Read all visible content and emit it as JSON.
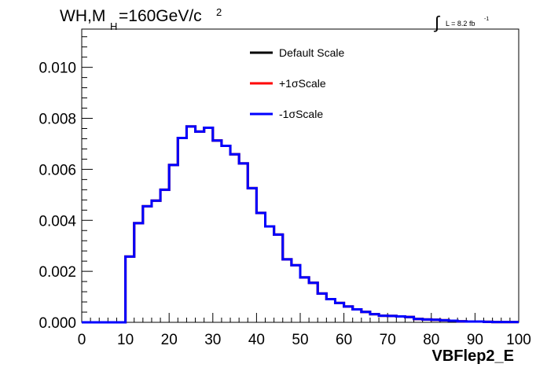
{
  "chart_data": {
    "type": "line",
    "title": {
      "main": "WH,M",
      "sub": "H",
      "value": "=160GeV/c",
      "sup": "2"
    },
    "luminosity": {
      "label": "L = 8.2 fb",
      "sup": "-1",
      "integral_glyph": "∫"
    },
    "xlabel": "VBFlep2_E",
    "ylabel": "",
    "xlim": [
      0,
      100
    ],
    "ylim": [
      0,
      0.0115
    ],
    "x_ticks": [
      "0",
      "10",
      "20",
      "30",
      "40",
      "50",
      "60",
      "70",
      "80",
      "90",
      "100"
    ],
    "y_ticks": [
      "0.000",
      "0.002",
      "0.004",
      "0.006",
      "0.008",
      "0.010"
    ],
    "bin_edges": [
      0,
      2,
      4,
      6,
      8,
      10,
      12,
      14,
      16,
      18,
      20,
      22,
      24,
      26,
      28,
      30,
      32,
      34,
      36,
      38,
      40,
      42,
      44,
      46,
      48,
      50,
      52,
      54,
      56,
      58,
      60,
      62,
      64,
      66,
      68,
      70,
      72,
      74,
      76,
      78,
      80,
      82,
      84,
      86,
      88,
      90,
      92,
      94,
      96,
      98,
      100
    ],
    "series": [
      {
        "name": "Default Scale",
        "color": "#000000",
        "values": [
          0,
          0,
          0,
          0,
          0,
          0.00258,
          0.00389,
          0.00455,
          0.00477,
          0.0052,
          0.00617,
          0.00723,
          0.00768,
          0.00748,
          0.00763,
          0.00713,
          0.00692,
          0.00659,
          0.00623,
          0.00526,
          0.00429,
          0.00376,
          0.00344,
          0.00247,
          0.00224,
          0.00176,
          0.00155,
          0.00113,
          0.00091,
          0.00076,
          0.00062,
          0.00051,
          0.00041,
          0.00032,
          0.00026,
          0.00025,
          0.00023,
          0.00021,
          0.00013,
          0.00011,
          0.0001,
          8e-05,
          6e-05,
          4e-05,
          3e-05,
          3e-05,
          2e-05,
          1e-05,
          1e-05,
          1e-05
        ]
      },
      {
        "name": "+1σScale",
        "color": "#ff0000",
        "values": [
          0,
          0,
          0,
          0,
          0,
          0.00258,
          0.00389,
          0.00455,
          0.00477,
          0.0052,
          0.00617,
          0.00723,
          0.00768,
          0.00748,
          0.00763,
          0.00713,
          0.00692,
          0.00659,
          0.00623,
          0.00526,
          0.00429,
          0.00376,
          0.00344,
          0.00247,
          0.00224,
          0.00176,
          0.00155,
          0.00113,
          0.00091,
          0.00076,
          0.00062,
          0.00051,
          0.00041,
          0.00032,
          0.00026,
          0.00025,
          0.00023,
          0.00021,
          0.00013,
          0.00011,
          0.0001,
          8e-05,
          6e-05,
          4e-05,
          3e-05,
          3e-05,
          2e-05,
          1e-05,
          1e-05,
          1e-05
        ]
      },
      {
        "name": "-1σScale",
        "color": "#0000ff",
        "values": [
          0,
          0,
          0,
          0,
          0,
          0.00258,
          0.00389,
          0.00455,
          0.00477,
          0.0052,
          0.00617,
          0.00723,
          0.00768,
          0.00748,
          0.00763,
          0.00713,
          0.00692,
          0.00659,
          0.00623,
          0.00526,
          0.00429,
          0.00376,
          0.00344,
          0.00247,
          0.00224,
          0.00176,
          0.00155,
          0.00113,
          0.00091,
          0.00076,
          0.00062,
          0.00051,
          0.00041,
          0.00032,
          0.00026,
          0.00025,
          0.00023,
          0.00021,
          0.00013,
          0.00011,
          0.0001,
          8e-05,
          6e-05,
          4e-05,
          3e-05,
          3e-05,
          2e-05,
          1e-05,
          1e-05,
          1e-05
        ]
      }
    ],
    "legend": {
      "placement": "top-center",
      "border": false
    },
    "grid": false
  }
}
